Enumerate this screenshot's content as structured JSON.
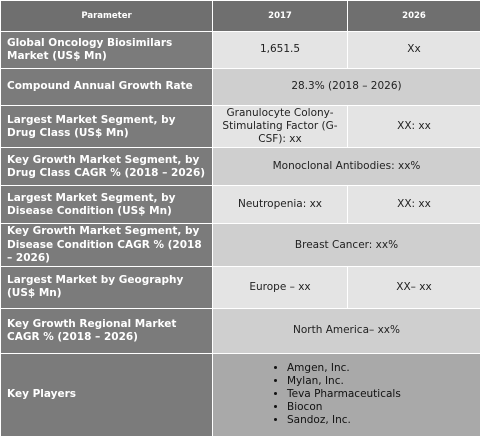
{
  "table": {
    "header": [
      "Parameter",
      "2017",
      "2026"
    ],
    "rows": [
      {
        "label": "Global Oncology Biosimilars Market (US$ Mn)",
        "values": [
          "1,651.5",
          "Xx"
        ]
      },
      {
        "label": "Compound Annual Growth Rate",
        "value": "28.3% (2018 – 2026)"
      },
      {
        "label": "Largest Market Segment, by Drug Class (US$ Mn)",
        "values": [
          "Granulocyte Colony-Stimulating Factor (G-CSF): xx",
          "XX: xx"
        ]
      },
      {
        "label": "Key Growth Market Segment, by Drug Class CAGR % (2018 – 2026)",
        "value": "Monoclonal Antibodies: xx%"
      },
      {
        "label": "Largest Market Segment, by Disease Condition (US$ Mn)",
        "values": [
          "Neutropenia: xx",
          "XX: xx"
        ]
      },
      {
        "label": "Key Growth Market Segment, by Disease Condition CAGR % (2018 – 2026)",
        "value": "Breast Cancer: xx%"
      },
      {
        "label": "Largest Market by Geography (US$ Mn)",
        "values": [
          "Europe – xx",
          "XX– xx"
        ]
      },
      {
        "label": "Key Growth Regional Market CAGR % (2018 – 2026)",
        "value": "North America– xx%"
      },
      {
        "label": "Key Players",
        "items": [
          "Amgen, Inc.",
          "Mylan, Inc.",
          "Teva Pharmaceuticals",
          "Biocon",
          "Sandoz, Inc."
        ]
      }
    ]
  }
}
